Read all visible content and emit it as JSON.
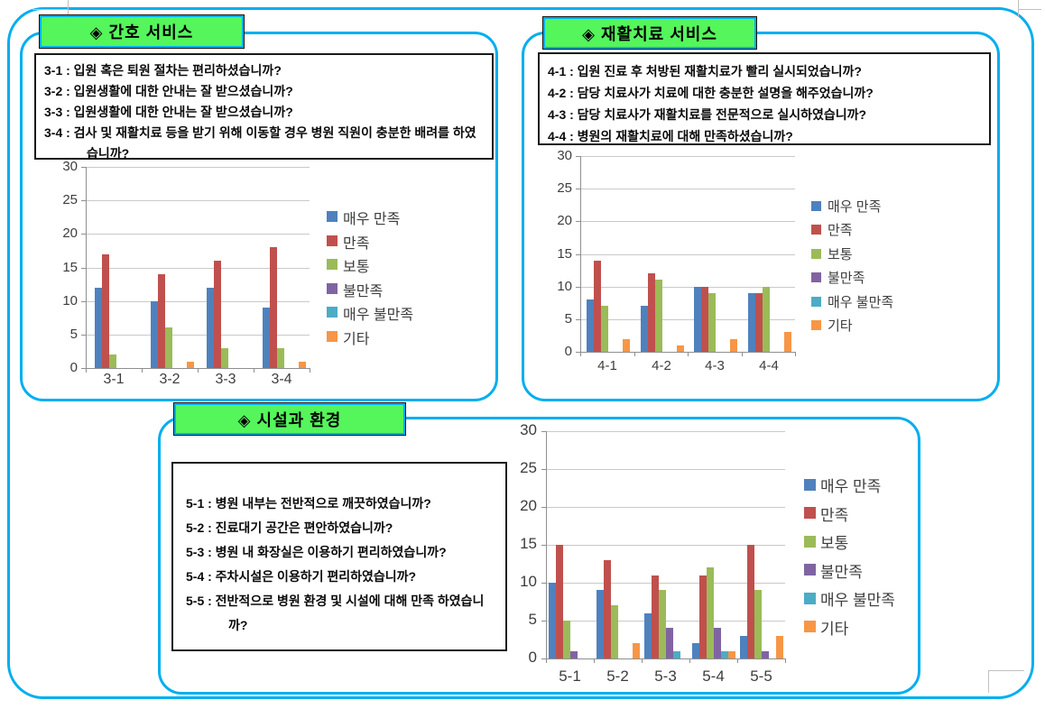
{
  "page": {
    "accent_border_color": "#00AEEF",
    "header_bg_color": "#55F55C"
  },
  "panels": [
    {
      "title": "◈ 간호 서비스",
      "questions": [
        "3-1 : 입원 혹은 퇴원 절차는 편리하셨습니까?",
        "3-2 : 입원생활에 대한 안내는 잘 받으셨습니까?",
        "3-3 : 입원생활에 대한 안내는 잘 받으셨습니까?",
        "3-4 : 검사 및 재활치료 등을 받기 위해 이동할 경우 병원 직원이 충분한 배려를 하였습니까?"
      ]
    },
    {
      "title": "◈ 재활치료 서비스",
      "questions": [
        "4-1 : 입원 진료 후 처방된 재활치료가 빨리 실시되었습니까?",
        "4-2 : 담당 치료사가 치료에 대한 충분한 설명을 해주었습니까?",
        "4-3 : 담당 치료사가 재활치료를 전문적으로 실시하였습니까?",
        "4-4 : 병원의 재활치료에 대해 만족하셨습니까?"
      ]
    },
    {
      "title": "◈ 시설과 환경",
      "questions": [
        "5-1 : 병원 내부는 전반적으로 깨끗하였습니까?",
        "5-2 : 진료대기 공간은 편안하였습니까?",
        "5-3 : 병원 내 화장실은 이용하기 편리하였습니까?",
        "5-4 : 주차시설은 이용하기 편리하였습니까?",
        "5-5 : 전반적으로 병원 환경 및 시설에 대해 만족 하였습니까?"
      ]
    }
  ],
  "chart_data": [
    {
      "type": "bar",
      "title": "",
      "categories": [
        "3-1",
        "3-2",
        "3-3",
        "3-4"
      ],
      "series": [
        {
          "name": "매우 만족",
          "color": "#4F81BD",
          "values": [
            12,
            10,
            12,
            9
          ]
        },
        {
          "name": "만족",
          "color": "#C0504D",
          "values": [
            17,
            14,
            16,
            18
          ]
        },
        {
          "name": "보통",
          "color": "#9BBB59",
          "values": [
            2,
            6,
            3,
            3
          ]
        },
        {
          "name": "불만족",
          "color": "#8064A2",
          "values": [
            0,
            0,
            0,
            0
          ]
        },
        {
          "name": "매우 불만족",
          "color": "#4BACC6",
          "values": [
            0,
            0,
            0,
            0
          ]
        },
        {
          "name": "기타",
          "color": "#F79646",
          "values": [
            0,
            1,
            0,
            1
          ]
        }
      ],
      "xlabel": "",
      "ylabel": "",
      "ylim": [
        0,
        30
      ],
      "yticks": [
        0,
        5,
        10,
        15,
        20,
        25,
        30
      ],
      "grid": true,
      "legend_position": "right"
    },
    {
      "type": "bar",
      "title": "",
      "categories": [
        "4-1",
        "4-2",
        "4-3",
        "4-4"
      ],
      "series": [
        {
          "name": "매우 만족",
          "color": "#4F81BD",
          "values": [
            8,
            7,
            10,
            9
          ]
        },
        {
          "name": "만족",
          "color": "#C0504D",
          "values": [
            14,
            12,
            10,
            9
          ]
        },
        {
          "name": "보통",
          "color": "#9BBB59",
          "values": [
            7,
            11,
            9,
            10
          ]
        },
        {
          "name": "불만족",
          "color": "#8064A2",
          "values": [
            0,
            0,
            0,
            0
          ]
        },
        {
          "name": "매우 불만족",
          "color": "#4BACC6",
          "values": [
            0,
            0,
            0,
            0
          ]
        },
        {
          "name": "기타",
          "color": "#F79646",
          "values": [
            2,
            1,
            2,
            3
          ]
        }
      ],
      "xlabel": "",
      "ylabel": "",
      "ylim": [
        0,
        30
      ],
      "yticks": [
        0,
        5,
        10,
        15,
        20,
        25,
        30
      ],
      "grid": true,
      "legend_position": "right"
    },
    {
      "type": "bar",
      "title": "",
      "categories": [
        "5-1",
        "5-2",
        "5-3",
        "5-4",
        "5-5"
      ],
      "series": [
        {
          "name": "매우 만족",
          "color": "#4F81BD",
          "values": [
            10,
            9,
            6,
            2,
            3
          ]
        },
        {
          "name": "만족",
          "color": "#C0504D",
          "values": [
            15,
            13,
            11,
            11,
            15
          ]
        },
        {
          "name": "보통",
          "color": "#9BBB59",
          "values": [
            5,
            7,
            9,
            12,
            9
          ]
        },
        {
          "name": "불만족",
          "color": "#8064A2",
          "values": [
            1,
            0,
            4,
            4,
            1
          ]
        },
        {
          "name": "매우 불만족",
          "color": "#4BACC6",
          "values": [
            0,
            0,
            1,
            1,
            0
          ]
        },
        {
          "name": "기타",
          "color": "#F79646",
          "values": [
            0,
            2,
            0,
            1,
            3
          ]
        }
      ],
      "xlabel": "",
      "ylabel": "",
      "ylim": [
        0,
        30
      ],
      "yticks": [
        0,
        5,
        10,
        15,
        20,
        25,
        30
      ],
      "grid": true,
      "legend_position": "right"
    }
  ]
}
